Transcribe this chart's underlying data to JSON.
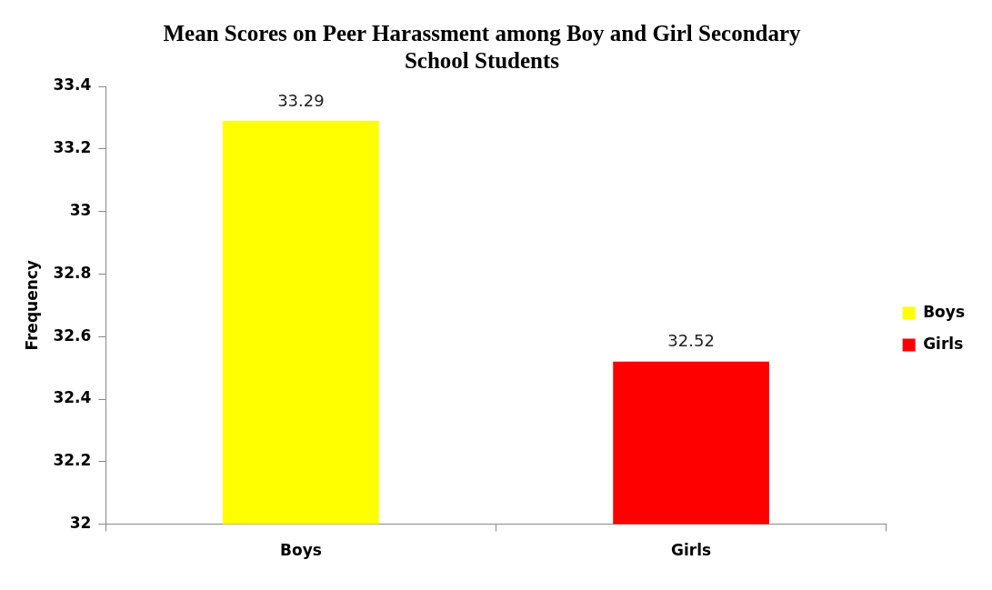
{
  "chart_data": {
    "type": "bar",
    "title": "Mean Scores on Peer Harassment among Boy and Girl Secondary School Students",
    "ylabel": "Frequency",
    "categories": [
      "Boys",
      "Girls"
    ],
    "series": [
      {
        "name": "Boys",
        "color": "#ffff00",
        "values": [
          33.29,
          null
        ]
      },
      {
        "name": "Girls",
        "color": "#ff0000",
        "values": [
          null,
          32.52
        ]
      }
    ],
    "ylim": [
      32,
      33.4
    ],
    "yticks": [
      32,
      32.2,
      32.4,
      32.6,
      32.8,
      33,
      33.2,
      33.4
    ],
    "data_labels": true,
    "legend": "right",
    "grid": false
  }
}
